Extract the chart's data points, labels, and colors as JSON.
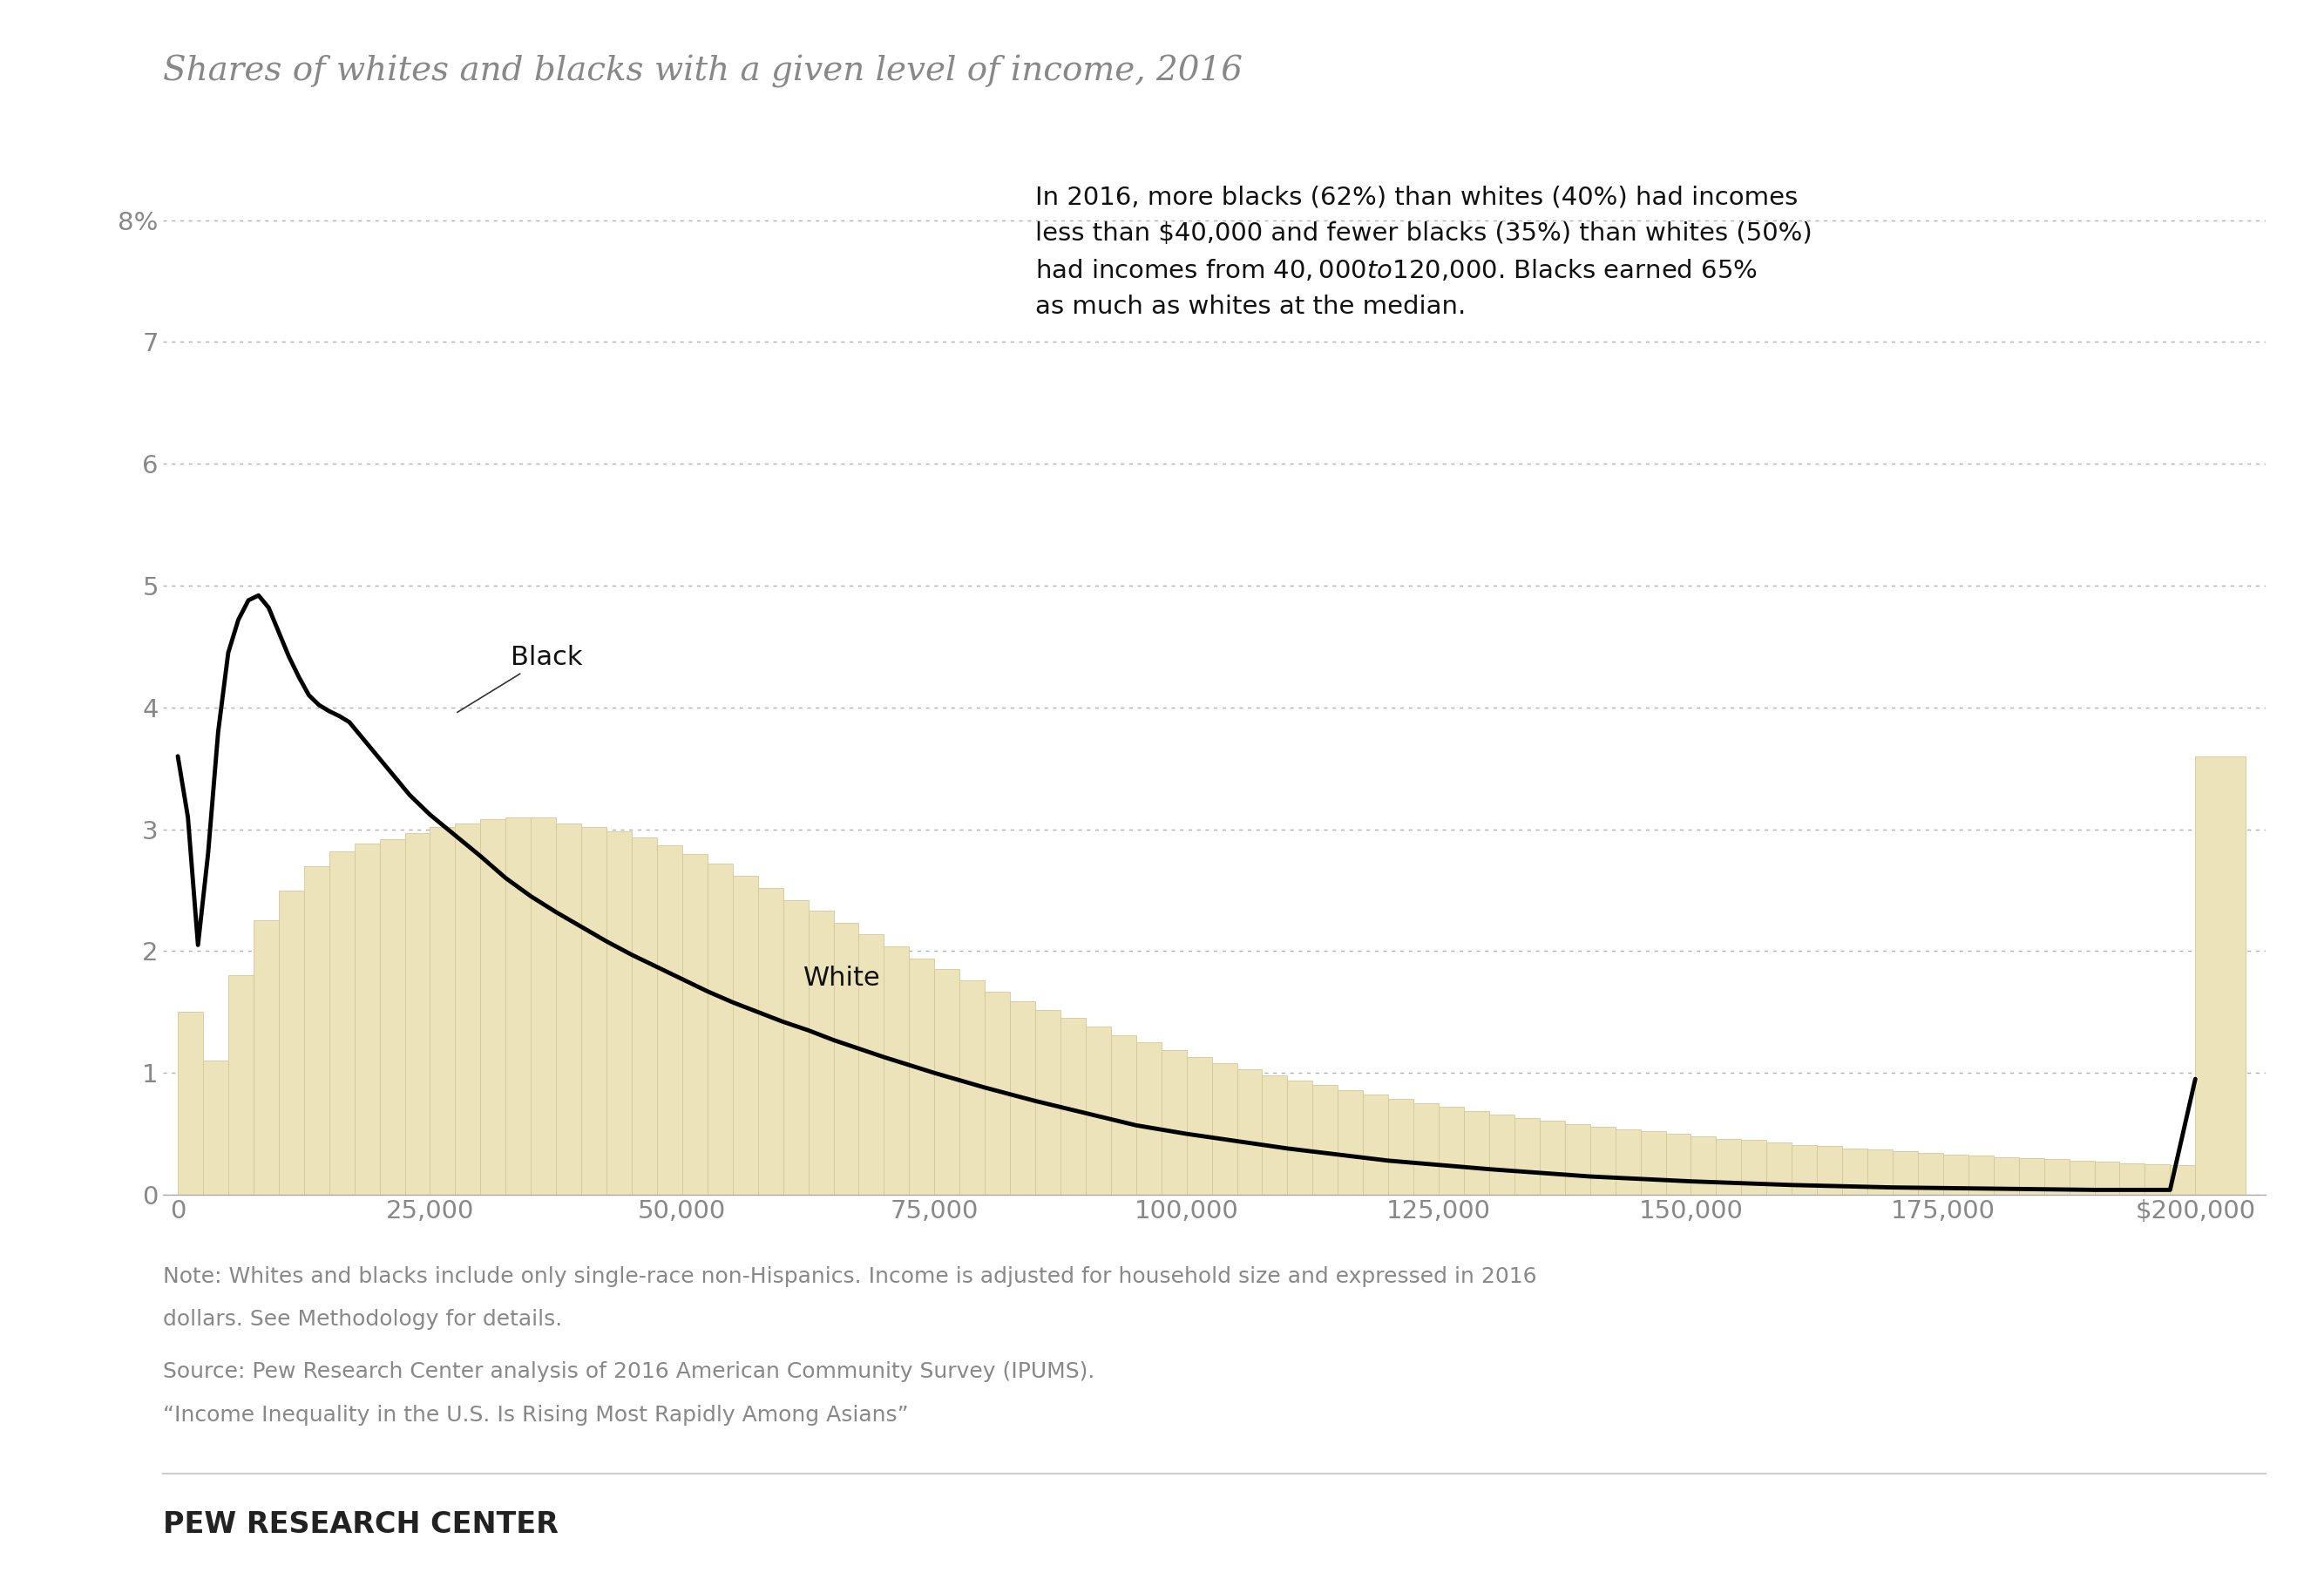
{
  "title": "Shares of whites and blacks with a given level of income, 2016",
  "background_color": "#ffffff",
  "bar_color": "#ede3bb",
  "bar_edge_color": "#d4c898",
  "line_color": "#000000",
  "annotation_text": "In 2016, more blacks (62%) than whites (40%) had incomes\nless than $40,000 and fewer blacks (35%) than whites (50%)\nhad incomes from $40,000 to $120,000. Blacks earned 65%\nas much as whites at the median.",
  "white_label": "White",
  "black_label": "Black",
  "ylim": [
    0,
    8.5
  ],
  "yticks": [
    0,
    1,
    2,
    3,
    4,
    5,
    6,
    7,
    8
  ],
  "ytick_labels": [
    "0",
    "1",
    "2",
    "3",
    "4",
    "5",
    "6",
    "7",
    "8%"
  ],
  "xticks": [
    0,
    25000,
    50000,
    75000,
    100000,
    125000,
    150000,
    175000,
    200000
  ],
  "xtick_labels": [
    "0",
    "25,000",
    "50,000",
    "75,000",
    "100,000",
    "125,000",
    "150,000",
    "175,000",
    "$200,000"
  ],
  "note_line1": "Note: Whites and blacks include only single-race non-Hispanics. Income is adjusted for household size and expressed in 2016",
  "note_line2": "dollars. See Methodology for details.",
  "source_line": "Source: Pew Research Center analysis of 2016 American Community Survey (IPUMS).",
  "quote_line": "“Income Inequality in the U.S. Is Rising Most Rapidly Among Asians”",
  "footer": "PEW RESEARCH CENTER",
  "title_fontsize": 28,
  "tick_fontsize": 21,
  "annotation_fontsize": 21,
  "label_fontsize": 22,
  "note_fontsize": 18,
  "footer_fontsize": 24,
  "white_bins": [
    0,
    2500,
    5000,
    7500,
    10000,
    12500,
    15000,
    17500,
    20000,
    22500,
    25000,
    27500,
    30000,
    32500,
    35000,
    37500,
    40000,
    42500,
    45000,
    47500,
    50000,
    52500,
    55000,
    57500,
    60000,
    62500,
    65000,
    67500,
    70000,
    72500,
    75000,
    77500,
    80000,
    82500,
    85000,
    87500,
    90000,
    92500,
    95000,
    97500,
    100000,
    102500,
    105000,
    107500,
    110000,
    112500,
    115000,
    117500,
    120000,
    122500,
    125000,
    127500,
    130000,
    132500,
    135000,
    137500,
    140000,
    142500,
    145000,
    147500,
    150000,
    152500,
    155000,
    157500,
    160000,
    162500,
    165000,
    167500,
    170000,
    172500,
    175000,
    177500,
    180000,
    182500,
    185000,
    187500,
    190000,
    192500,
    195000,
    197500,
    200000
  ],
  "white_values": [
    1.5,
    1.1,
    1.8,
    2.25,
    2.5,
    2.7,
    2.82,
    2.88,
    2.92,
    2.97,
    3.02,
    3.05,
    3.08,
    3.1,
    3.1,
    3.05,
    3.02,
    2.98,
    2.93,
    2.87,
    2.8,
    2.72,
    2.62,
    2.52,
    2.42,
    2.33,
    2.23,
    2.14,
    2.04,
    1.94,
    1.85,
    1.76,
    1.67,
    1.59,
    1.52,
    1.45,
    1.38,
    1.31,
    1.25,
    1.19,
    1.13,
    1.08,
    1.03,
    0.98,
    0.94,
    0.9,
    0.86,
    0.82,
    0.79,
    0.75,
    0.72,
    0.69,
    0.66,
    0.63,
    0.61,
    0.58,
    0.56,
    0.54,
    0.52,
    0.5,
    0.48,
    0.46,
    0.45,
    0.43,
    0.41,
    0.4,
    0.38,
    0.37,
    0.36,
    0.34,
    0.33,
    0.32,
    0.31,
    0.3,
    0.29,
    0.28,
    0.27,
    0.26,
    0.25,
    0.24,
    3.6
  ],
  "black_x": [
    0,
    1000,
    2000,
    3000,
    4000,
    5000,
    6000,
    7000,
    8000,
    9000,
    10000,
    11000,
    12000,
    13000,
    14000,
    15000,
    16000,
    17000,
    18000,
    19000,
    20000,
    21000,
    22000,
    23000,
    24000,
    25000,
    27500,
    30000,
    32500,
    35000,
    37500,
    40000,
    42500,
    45000,
    47500,
    50000,
    52500,
    55000,
    57500,
    60000,
    62500,
    65000,
    70000,
    75000,
    80000,
    85000,
    90000,
    95000,
    100000,
    110000,
    120000,
    130000,
    140000,
    150000,
    160000,
    170000,
    180000,
    190000,
    197500,
    200000
  ],
  "black_y": [
    3.6,
    3.1,
    2.05,
    2.8,
    3.8,
    4.45,
    4.72,
    4.88,
    4.92,
    4.82,
    4.62,
    4.42,
    4.25,
    4.1,
    4.02,
    3.97,
    3.93,
    3.88,
    3.78,
    3.68,
    3.58,
    3.48,
    3.38,
    3.28,
    3.2,
    3.12,
    2.95,
    2.78,
    2.6,
    2.45,
    2.32,
    2.2,
    2.08,
    1.97,
    1.87,
    1.77,
    1.67,
    1.58,
    1.5,
    1.42,
    1.35,
    1.27,
    1.13,
    1.0,
    0.88,
    0.77,
    0.67,
    0.57,
    0.5,
    0.38,
    0.28,
    0.21,
    0.15,
    0.11,
    0.08,
    0.06,
    0.05,
    0.04,
    0.04,
    0.95
  ]
}
